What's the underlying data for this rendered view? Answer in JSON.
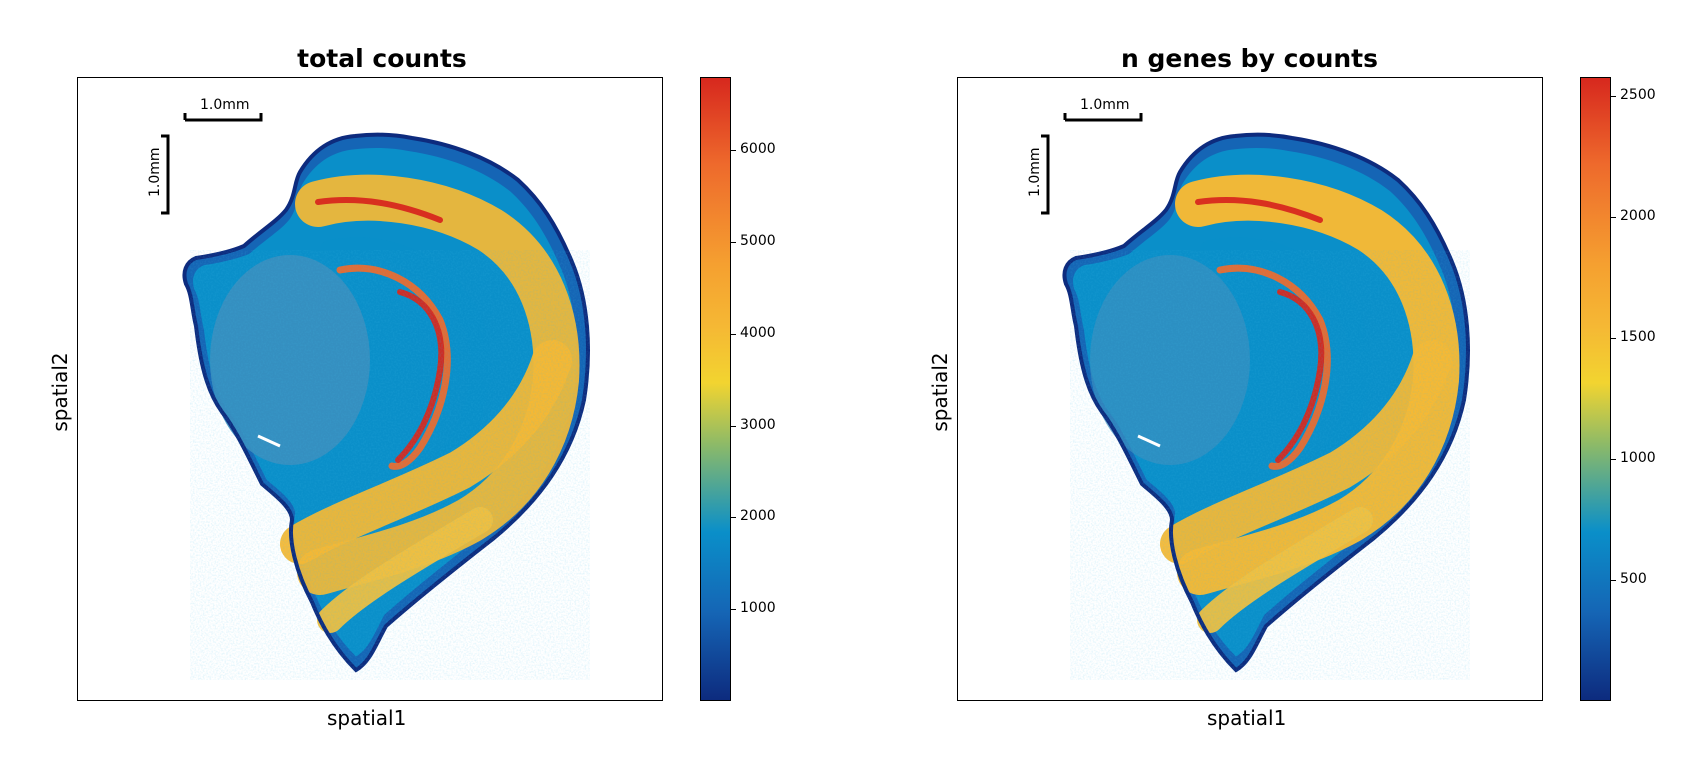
{
  "chart_data": [
    {
      "type": "heatmap",
      "title": "total counts",
      "xlabel": "spatial1",
      "ylabel": "spatial2",
      "colorbar": {
        "min": 0,
        "max": 6800,
        "ticks": [
          1000,
          2000,
          3000,
          4000,
          5000,
          6000
        ],
        "tick_labels": [
          "1000",
          "2000",
          "3000",
          "4000",
          "5000",
          "6000"
        ]
      },
      "scalebar": {
        "horizontal_label": "1.0mm",
        "vertical_label": "1.0mm"
      },
      "colormap": [
        "#0d2b7e",
        "#1565b5",
        "#0a8fc9",
        "#8cba68",
        "#f2d430",
        "#f5a030",
        "#ee6a2c",
        "#d7281e"
      ]
    },
    {
      "type": "heatmap",
      "title": "n genes by counts",
      "xlabel": "spatial1",
      "ylabel": "spatial2",
      "colorbar": {
        "min": 0,
        "max": 2580,
        "ticks": [
          500,
          1000,
          1500,
          2000,
          2500
        ],
        "tick_labels": [
          "500",
          "1000",
          "1500",
          "2000",
          "2500"
        ]
      },
      "scalebar": {
        "horizontal_label": "1.0mm",
        "vertical_label": "1.0mm"
      },
      "colormap": [
        "#0d2b7e",
        "#1565b5",
        "#0a8fc9",
        "#8cba68",
        "#f2d430",
        "#f5a030",
        "#ee6a2c",
        "#d7281e"
      ]
    }
  ]
}
